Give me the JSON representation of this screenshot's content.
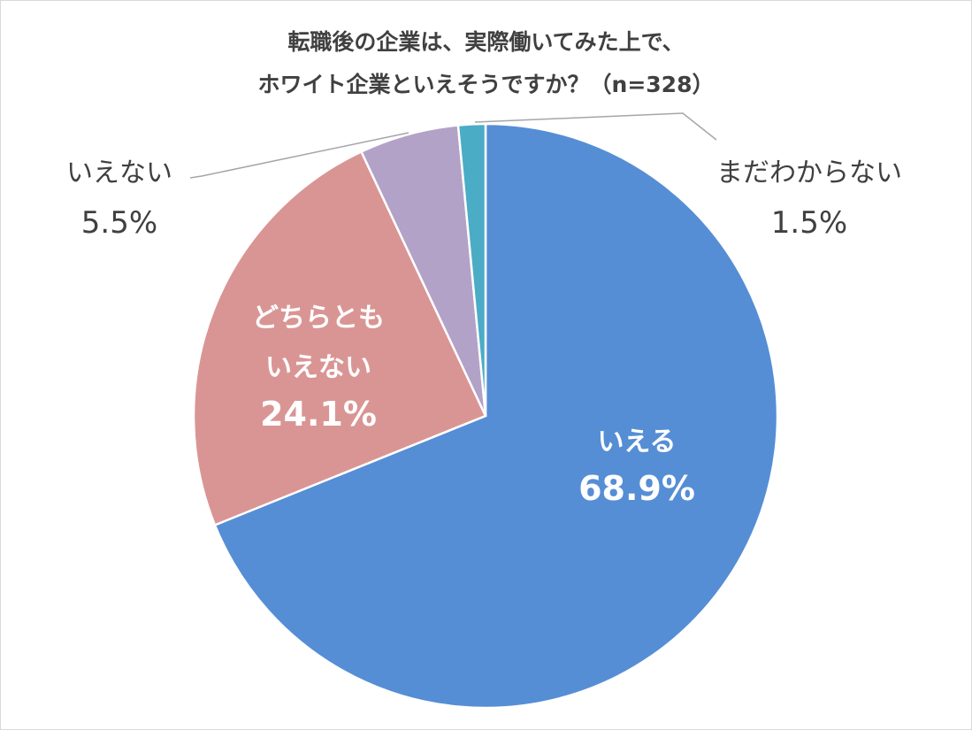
{
  "chart_data": {
    "type": "pie",
    "title_lines": [
      "転職後の企業は、実際働いてみた上で、",
      "ホワイト企業といえそうですか？（n=328）"
    ],
    "slices": [
      {
        "label_lines": [
          "いえる"
        ],
        "value": 68.9,
        "value_label": "68.9%",
        "color": "#558ED5"
      },
      {
        "label_lines": [
          "どちらとも",
          "いえない"
        ],
        "value": 24.1,
        "value_label": "24.1%",
        "color": "#D99594"
      },
      {
        "label_lines": [
          "いえない"
        ],
        "value": 5.5,
        "value_label": "5.5%",
        "color": "#B3A2C7"
      },
      {
        "label_lines": [
          "まだわからない"
        ],
        "value": 1.5,
        "value_label": "1.5%",
        "color": "#4BACC6"
      }
    ],
    "start_angle": "top",
    "direction": "clockwise"
  }
}
